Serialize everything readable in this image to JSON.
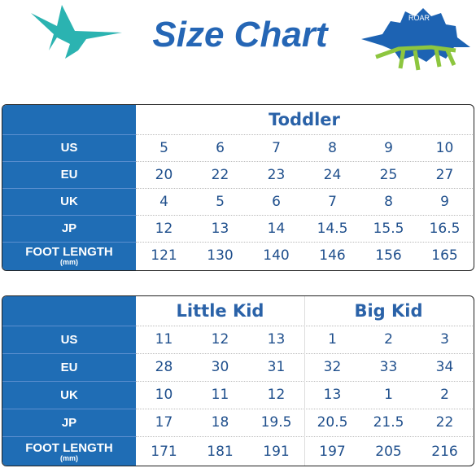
{
  "header": {
    "title": "Size Chart",
    "badge": "ROAR"
  },
  "tables": [
    {
      "groups": [
        {
          "label": "Toddler",
          "rows": [
            [
              5,
              6,
              7,
              8,
              9,
              10
            ],
            [
              20,
              22,
              23,
              24,
              25,
              27
            ],
            [
              4,
              5,
              6,
              7,
              8,
              9
            ],
            [
              12,
              13,
              14,
              14.5,
              15.5,
              16.5
            ],
            [
              121,
              130,
              140,
              146,
              156,
              165
            ]
          ]
        }
      ],
      "row_labels": [
        "US",
        "EU",
        "UK",
        "JP",
        "FOOT LENGTH"
      ],
      "unit_note": "(mm)"
    },
    {
      "groups": [
        {
          "label": "Little Kid",
          "rows": [
            [
              11,
              12,
              13
            ],
            [
              28,
              30,
              31
            ],
            [
              10,
              11,
              12
            ],
            [
              17,
              18,
              19.5
            ],
            [
              171,
              181,
              191
            ]
          ]
        },
        {
          "label": "Big Kid",
          "rows": [
            [
              1,
              2,
              3
            ],
            [
              32,
              33,
              34
            ],
            [
              13,
              1,
              2
            ],
            [
              20.5,
              21.5,
              22
            ],
            [
              197,
              205,
              216
            ]
          ]
        }
      ],
      "row_labels": [
        "US",
        "EU",
        "UK",
        "JP",
        "FOOT LENGTH"
      ],
      "unit_note": "(mm)"
    }
  ]
}
